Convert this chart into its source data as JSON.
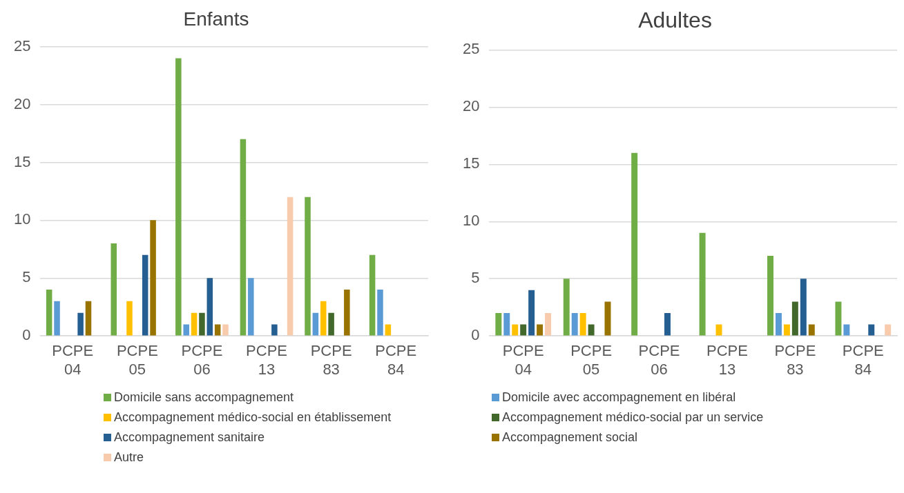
{
  "chart_data": [
    {
      "type": "bar",
      "title": "Enfants",
      "categories": [
        "PCPE 04",
        "PCPE 05",
        "PCPE 06",
        "PCPE 13",
        "PCPE 83",
        "PCPE 84"
      ],
      "ylim": [
        0,
        25
      ],
      "yticks": [
        0,
        5,
        10,
        15,
        20,
        25
      ],
      "grid": "y",
      "legend": "bottom",
      "series": [
        {
          "name": "Domicile sans accompagnement",
          "color": "#70ad47",
          "values": [
            4,
            8,
            24,
            17,
            12,
            7
          ]
        },
        {
          "name": "Domicile avec accompagnement en libéral",
          "color": "#5b9bd5",
          "values": [
            3,
            null,
            1,
            5,
            2,
            4
          ]
        },
        {
          "name": "Accompagnement médico-social en établissement",
          "color": "#ffc000",
          "values": [
            null,
            3,
            2,
            null,
            3,
            1
          ]
        },
        {
          "name": "Accompagnement médico-social par un service",
          "color": "#43682b",
          "values": [
            null,
            null,
            2,
            null,
            2,
            null
          ]
        },
        {
          "name": "Accompagnement sanitaire",
          "color": "#255e91",
          "values": [
            2,
            7,
            5,
            1,
            null,
            null
          ]
        },
        {
          "name": "Accompagnement social",
          "color": "#997300",
          "values": [
            3,
            10,
            1,
            null,
            4,
            null
          ]
        },
        {
          "name": "Autre",
          "color": "#f8cbad",
          "values": [
            null,
            null,
            1,
            12,
            null,
            null
          ]
        }
      ]
    },
    {
      "type": "bar",
      "title": "Adultes",
      "categories": [
        "PCPE 04",
        "PCPE 05",
        "PCPE 06",
        "PCPE 13",
        "PCPE 83",
        "PCPE 84"
      ],
      "ylim": [
        0,
        25
      ],
      "yticks": [
        0,
        5,
        10,
        15,
        20,
        25
      ],
      "grid": "y",
      "series": [
        {
          "color": "#70ad47",
          "values": [
            2,
            5,
            16,
            9,
            7,
            3
          ]
        },
        {
          "color": "#5b9bd5",
          "values": [
            2,
            2,
            null,
            null,
            2,
            1
          ]
        },
        {
          "color": "#ffc000",
          "values": [
            1,
            2,
            null,
            1,
            1,
            null
          ]
        },
        {
          "color": "#43682b",
          "values": [
            1,
            1,
            null,
            null,
            3,
            null
          ]
        },
        {
          "color": "#255e91",
          "values": [
            4,
            null,
            2,
            null,
            5,
            1
          ]
        },
        {
          "color": "#997300",
          "values": [
            1,
            3,
            null,
            null,
            1,
            null
          ]
        },
        {
          "color": "#f8cbad",
          "values": [
            2,
            null,
            null,
            null,
            null,
            1
          ]
        }
      ]
    }
  ]
}
